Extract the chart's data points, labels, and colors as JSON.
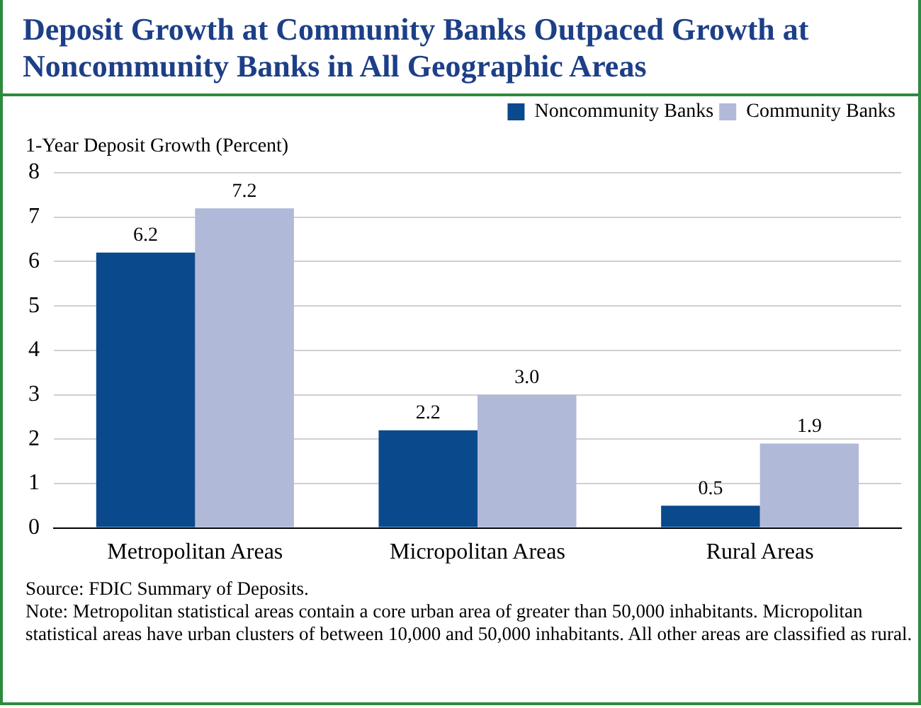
{
  "chart_data": {
    "type": "bar",
    "title": "Deposit Growth at Community Banks Outpaced Growth at Noncommunity Banks in All Geographic Areas",
    "ylabel": "1-Year Deposit Growth (Percent)",
    "categories": [
      "Metropolitan Areas",
      "Micropolitan Areas",
      "Rural Areas"
    ],
    "series": [
      {
        "name": "Noncommunity Banks",
        "color": "#0a4a8c",
        "values": [
          6.2,
          2.2,
          0.5
        ],
        "value_labels": [
          "6.2",
          "2.2",
          "0.5"
        ]
      },
      {
        "name": "Community Banks",
        "color": "#b1b9d9",
        "values": [
          7.2,
          3.0,
          1.9
        ],
        "value_labels": [
          "7.2",
          "3.0",
          "1.9"
        ]
      }
    ],
    "ylim": [
      0,
      8
    ],
    "yticks": [
      0,
      1,
      2,
      3,
      4,
      5,
      6,
      7,
      8
    ],
    "grid": "y",
    "legend": "top right",
    "annotations": [
      "Source: FDIC Summary of Deposits.",
      "Note: Metropolitan statistical areas contain a core urban area of greater than 50,000 inhabitants. Micropolitan statistical areas have urban clusters of between 10,000 and 50,000 inhabitants. All other areas are classified as rural."
    ]
  }
}
